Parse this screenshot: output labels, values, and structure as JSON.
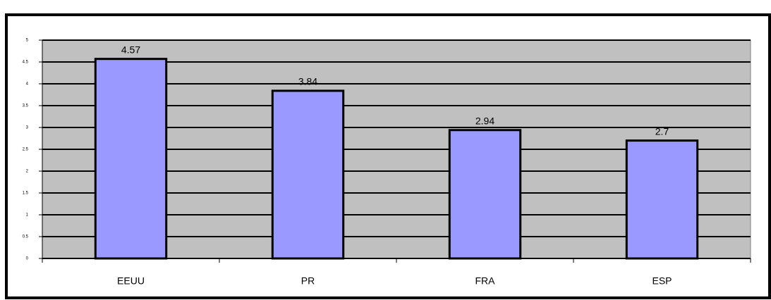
{
  "chart_data": {
    "type": "bar",
    "categories": [
      "EEUU",
      "PR",
      "FRA",
      "ESP"
    ],
    "values": [
      4.57,
      3.84,
      2.94,
      2.7
    ],
    "color": "#9999ff",
    "ylim": [
      0,
      5
    ],
    "yticks": [
      0,
      0.5,
      1,
      1.5,
      2,
      2.5,
      3,
      3.5,
      4,
      4.5,
      5
    ],
    "grid": true
  }
}
